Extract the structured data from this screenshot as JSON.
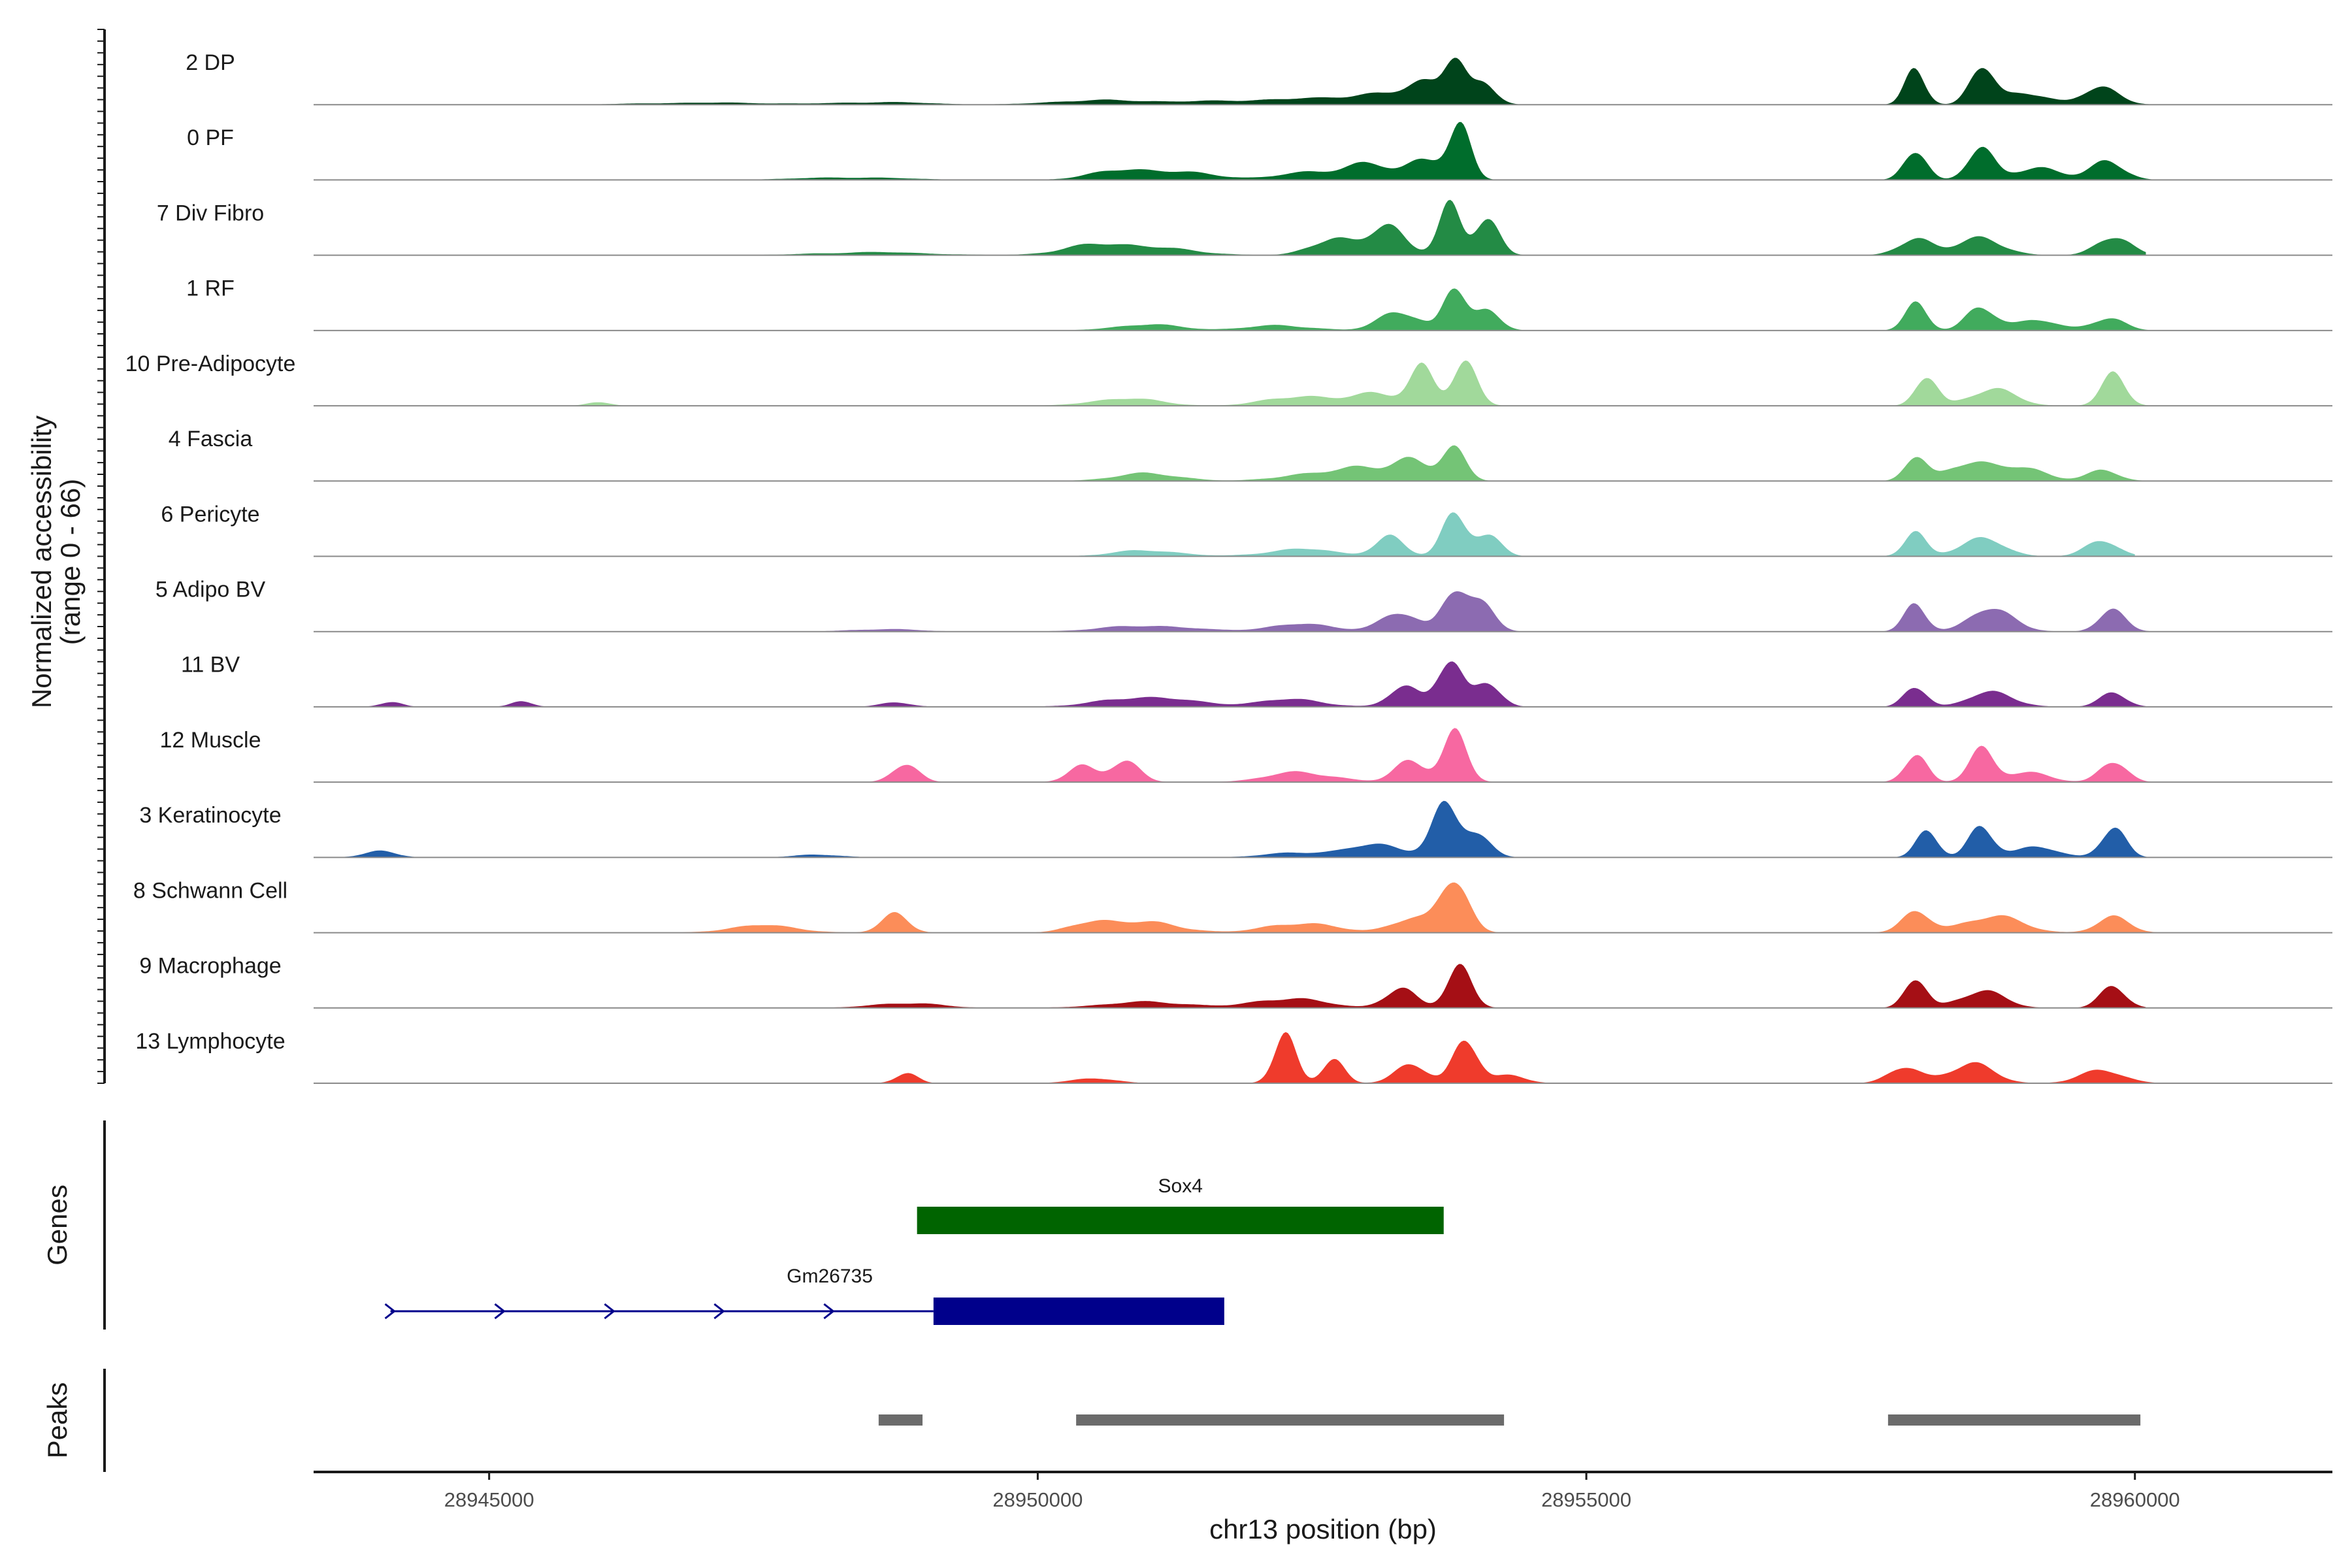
{
  "chart_data": {
    "type": "area",
    "title": "",
    "ylabel_line1": "Normalized accessibility",
    "ylabel_line2": "(range 0 - 66)",
    "xlabel": "chr13 position (bp)",
    "xlim": [
      28943400,
      28961800
    ],
    "ylim": [
      0,
      66
    ],
    "x_ticks": [
      28945000,
      28950000,
      28955000,
      28960000
    ],
    "x_tick_labels": [
      "28945000",
      "28950000",
      "28955000",
      "28960000"
    ],
    "series": [
      {
        "name": "2 DP",
        "color": "#00441b",
        "start": 28943400,
        "end": 28961100,
        "peaks": [
          [
            28953550,
            0.4,
            160
          ],
          [
            28953800,
            0.95,
            90
          ],
          [
            28954050,
            0.4,
            120
          ],
          [
            28953100,
            0.2,
            280
          ],
          [
            28952400,
            0.1,
            400
          ],
          [
            28950500,
            0.08,
            400
          ],
          [
            28951500,
            0.06,
            500
          ],
          [
            28958000,
            0.75,
            90
          ],
          [
            28958600,
            0.7,
            110
          ],
          [
            28959000,
            0.25,
            200
          ],
          [
            28959700,
            0.35,
            160
          ],
          [
            28948600,
            0.05,
            400
          ],
          [
            28947000,
            0.04,
            600
          ]
        ]
      },
      {
        "name": "0 PF",
        "color": "#006d2c",
        "start": 28943400,
        "end": 28960400,
        "peaks": [
          [
            28953550,
            0.45,
            160
          ],
          [
            28953850,
            1.0,
            100
          ],
          [
            28953000,
            0.3,
            200
          ],
          [
            28952500,
            0.15,
            300
          ],
          [
            28950800,
            0.2,
            300
          ],
          [
            28951400,
            0.12,
            300
          ],
          [
            28958000,
            0.65,
            100
          ],
          [
            28958600,
            0.6,
            120
          ],
          [
            28959100,
            0.25,
            200
          ],
          [
            28959750,
            0.4,
            150
          ],
          [
            28948300,
            0.05,
            500
          ]
        ]
      },
      {
        "name": "7 Div Fibro",
        "color": "#238b45",
        "start": 28943400,
        "end": 28960100,
        "peaks": [
          [
            28953200,
            0.55,
            160
          ],
          [
            28953750,
            1.0,
            100
          ],
          [
            28954100,
            0.7,
            110
          ],
          [
            28952700,
            0.35,
            200
          ],
          [
            28951000,
            0.15,
            400
          ],
          [
            28950500,
            0.15,
            300
          ],
          [
            28958000,
            0.35,
            150
          ],
          [
            28958600,
            0.35,
            200
          ],
          [
            28959800,
            0.4,
            150
          ],
          [
            28948500,
            0.06,
            500
          ]
        ]
      },
      {
        "name": "1 RF",
        "color": "#41ab5d",
        "start": 28943400,
        "end": 28960200,
        "peaks": [
          [
            28953300,
            0.4,
            180
          ],
          [
            28953800,
            0.8,
            100
          ],
          [
            28954100,
            0.4,
            120
          ],
          [
            28951000,
            0.12,
            300
          ],
          [
            28952200,
            0.1,
            300
          ],
          [
            28958000,
            0.55,
            100
          ],
          [
            28958600,
            0.5,
            130
          ],
          [
            28959100,
            0.2,
            200
          ],
          [
            28959750,
            0.25,
            150
          ]
        ]
      },
      {
        "name": "10 Pre-Adipocyte",
        "color": "#a1d99b",
        "start": 28943400,
        "end": 28961000,
        "peaks": [
          [
            28953500,
            0.75,
            110
          ],
          [
            28953900,
            0.85,
            110
          ],
          [
            28953100,
            0.25,
            200
          ],
          [
            28952400,
            0.2,
            300
          ],
          [
            28950800,
            0.15,
            300
          ],
          [
            28958100,
            0.55,
            100
          ],
          [
            28958700,
            0.35,
            200
          ],
          [
            28959800,
            0.6,
            110
          ],
          [
            28946000,
            0.08,
            100
          ]
        ]
      },
      {
        "name": "4 Fascia",
        "color": "#74c476",
        "start": 28943400,
        "end": 28960100,
        "peaks": [
          [
            28953400,
            0.4,
            160
          ],
          [
            28953800,
            0.65,
            110
          ],
          [
            28953000,
            0.25,
            200
          ],
          [
            28952500,
            0.15,
            300
          ],
          [
            28951000,
            0.15,
            300
          ],
          [
            28958000,
            0.45,
            100
          ],
          [
            28958500,
            0.4,
            200
          ],
          [
            28959000,
            0.25,
            200
          ],
          [
            28959700,
            0.2,
            150
          ]
        ]
      },
      {
        "name": "6 Pericyte",
        "color": "#80cdc1",
        "start": 28943400,
        "end": 28960000,
        "peaks": [
          [
            28953200,
            0.4,
            130
          ],
          [
            28953800,
            0.9,
            110
          ],
          [
            28954100,
            0.4,
            120
          ],
          [
            28952400,
            0.15,
            300
          ],
          [
            28951000,
            0.12,
            300
          ],
          [
            28958000,
            0.45,
            100
          ],
          [
            28958600,
            0.35,
            200
          ],
          [
            28959700,
            0.3,
            150
          ]
        ]
      },
      {
        "name": "5 Adipo BV",
        "color": "#8c6bb1",
        "start": 28943400,
        "end": 28960400,
        "peaks": [
          [
            28953800,
            0.9,
            110
          ],
          [
            28954050,
            0.5,
            120
          ],
          [
            28953300,
            0.35,
            180
          ],
          [
            28952400,
            0.15,
            300
          ],
          [
            28951000,
            0.12,
            400
          ],
          [
            28958000,
            0.55,
            100
          ],
          [
            28958700,
            0.45,
            200
          ],
          [
            28959800,
            0.45,
            120
          ],
          [
            28948600,
            0.05,
            300
          ]
        ]
      },
      {
        "name": "11 BV",
        "color": "#7a2d8f",
        "start": 28943400,
        "end": 28960100,
        "peaks": [
          [
            28953750,
            1.0,
            110
          ],
          [
            28954100,
            0.45,
            120
          ],
          [
            28953350,
            0.4,
            140
          ],
          [
            28952300,
            0.15,
            300
          ],
          [
            28951000,
            0.2,
            400
          ],
          [
            28958000,
            0.45,
            100
          ],
          [
            28958700,
            0.3,
            200
          ],
          [
            28959800,
            0.3,
            120
          ],
          [
            28944100,
            0.1,
            100
          ],
          [
            28945300,
            0.1,
            100
          ],
          [
            28948700,
            0.08,
            150
          ]
        ]
      },
      {
        "name": "12 Muscle",
        "color": "#f768a1",
        "start": 28943400,
        "end": 28960400,
        "peaks": [
          [
            28953800,
            0.95,
            110
          ],
          [
            28953400,
            0.45,
            140
          ],
          [
            28952400,
            0.2,
            300
          ],
          [
            28950800,
            0.45,
            130
          ],
          [
            28950400,
            0.3,
            130
          ],
          [
            28948800,
            0.35,
            120
          ],
          [
            28958000,
            0.6,
            100
          ],
          [
            28958600,
            0.65,
            110
          ],
          [
            28959000,
            0.2,
            200
          ],
          [
            28959800,
            0.45,
            120
          ]
        ]
      },
      {
        "name": "3 Keratinocyte",
        "color": "#225ea8",
        "start": 28943400,
        "end": 28960200,
        "peaks": [
          [
            28953700,
            0.95,
            120
          ],
          [
            28954000,
            0.45,
            130
          ],
          [
            28953100,
            0.25,
            250
          ],
          [
            28952400,
            0.1,
            300
          ],
          [
            28958100,
            0.5,
            100
          ],
          [
            28958600,
            0.65,
            110
          ],
          [
            28959100,
            0.2,
            200
          ],
          [
            28959800,
            0.6,
            110
          ],
          [
            28944000,
            0.12,
            150
          ],
          [
            28948000,
            0.06,
            200
          ]
        ]
      },
      {
        "name": "8 Schwann Cell",
        "color": "#fc8d59",
        "start": 28943400,
        "end": 28960200,
        "peaks": [
          [
            28953800,
            1.0,
            130
          ],
          [
            28953400,
            0.3,
            180
          ],
          [
            28952400,
            0.2,
            300
          ],
          [
            28950500,
            0.2,
            200
          ],
          [
            28951000,
            0.2,
            300
          ],
          [
            28948700,
            0.4,
            120
          ],
          [
            28947500,
            0.15,
            300
          ],
          [
            28958000,
            0.4,
            130
          ],
          [
            28958700,
            0.35,
            250
          ],
          [
            28959800,
            0.3,
            150
          ]
        ]
      },
      {
        "name": "9 Macrophage",
        "color": "#a50f15",
        "start": 28943400,
        "end": 28960100,
        "peaks": [
          [
            28953850,
            0.85,
            110
          ],
          [
            28953300,
            0.4,
            140
          ],
          [
            28952300,
            0.2,
            300
          ],
          [
            28951000,
            0.12,
            400
          ],
          [
            28948800,
            0.1,
            300
          ],
          [
            28958000,
            0.55,
            100
          ],
          [
            28958600,
            0.35,
            200
          ],
          [
            28959800,
            0.4,
            120
          ]
        ]
      },
      {
        "name": "13 Lymphocyte",
        "color": "#ef3b2c",
        "start": 28943400,
        "end": 28960300,
        "peaks": [
          [
            28952250,
            1.0,
            100
          ],
          [
            28952700,
            0.45,
            100
          ],
          [
            28953900,
            0.95,
            110
          ],
          [
            28953400,
            0.35,
            150
          ],
          [
            28954300,
            0.15,
            150
          ],
          [
            28948800,
            0.2,
            100
          ],
          [
            28950500,
            0.1,
            200
          ],
          [
            28957900,
            0.3,
            150
          ],
          [
            28958500,
            0.4,
            200
          ],
          [
            28959700,
            0.25,
            200
          ]
        ]
      }
    ],
    "genes": [
      {
        "name": "Sox4",
        "color": "#006400",
        "start": 28948900,
        "end": 28953700
      },
      {
        "name": "Gm26735",
        "color": "#00008b",
        "start": 28944100,
        "end": 28951700,
        "exon_start": 28949050,
        "exon_end": 28951700
      }
    ],
    "gene_track_label": "Genes",
    "peaks_track_label": "Peaks",
    "peaks_color": "#6b6b6b",
    "peak_regions": [
      [
        28948550,
        28948950
      ],
      [
        28950350,
        28954250
      ],
      [
        28957750,
        28960050
      ]
    ]
  }
}
